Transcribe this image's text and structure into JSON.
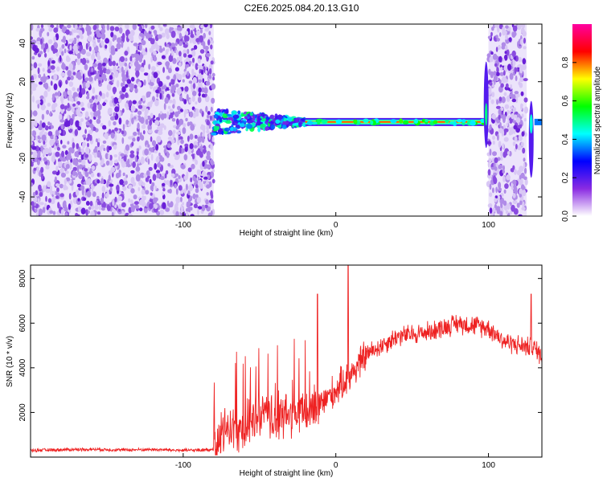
{
  "title": "C2E6.2025.084.20.13.G10",
  "chart_data": [
    {
      "type": "heatmap",
      "xlabel": "Height of straight line (km)",
      "ylabel": "Frequency (Hz)",
      "xlim": [
        -200,
        135
      ],
      "ylim": [
        -50,
        50
      ],
      "xticks": [
        -100,
        0,
        100
      ],
      "xtick_labels": [
        "-100",
        "0",
        "100"
      ],
      "yticks": [
        -40,
        -20,
        0,
        20,
        40
      ],
      "ytick_labels": [
        "-40",
        "-20",
        "0",
        "20",
        "40"
      ],
      "colorbar": {
        "label": "Normalized spectral amplitude",
        "range": [
          0,
          1
        ],
        "ticks": [
          0.0,
          0.2,
          0.4,
          0.6,
          0.8
        ],
        "tick_labels": [
          "0.0",
          "0.2",
          "0.4",
          "0.6",
          "0.8"
        ],
        "colors": [
          "#ffffff",
          "#8a2be2",
          "#0000ff",
          "#00ffff",
          "#00ff00",
          "#ffff00",
          "#ff0000",
          "#ff00a0"
        ]
      },
      "regions": [
        {
          "x_range": [
            -200,
            -80
          ],
          "content": "broadband noise",
          "freq_range": [
            -50,
            50
          ]
        },
        {
          "x_range": [
            -80,
            -20
          ],
          "content": "spreading signal",
          "freq_range": [
            -8,
            6
          ]
        },
        {
          "x_range": [
            -20,
            97
          ],
          "content": "narrow line",
          "freq": -1
        },
        {
          "x_range": [
            97,
            100
          ],
          "content": "spike",
          "freq_range": [
            -15,
            30
          ]
        },
        {
          "x_range": [
            100,
            125
          ],
          "content": "broadband noise",
          "freq_range": [
            -50,
            50
          ]
        },
        {
          "x_range": [
            125,
            135
          ],
          "content": "signal",
          "freq_range": [
            -30,
            10
          ]
        }
      ]
    },
    {
      "type": "line",
      "xlabel": "Height of straight line (km)",
      "ylabel": "SNR (10 * v/v)",
      "xlim": [
        -200,
        135
      ],
      "ylim": [
        0,
        8600
      ],
      "xticks": [
        -100,
        0,
        100
      ],
      "xtick_labels": [
        "-100",
        "0",
        "100"
      ],
      "yticks": [
        2000,
        4000,
        6000,
        8000
      ],
      "ytick_labels": [
        "2000",
        "4000",
        "6000",
        "8000"
      ],
      "series_color": "#ee2222",
      "x": [
        -200,
        -180,
        -160,
        -140,
        -120,
        -100,
        -90,
        -80,
        -70,
        -60,
        -50,
        -40,
        -30,
        -20,
        -10,
        0,
        10,
        20,
        30,
        40,
        50,
        60,
        70,
        80,
        90,
        100,
        110,
        120,
        130,
        135
      ],
      "y": [
        300,
        330,
        350,
        320,
        340,
        300,
        310,
        350,
        1400,
        1300,
        1900,
        1700,
        1900,
        2000,
        2400,
        3000,
        3700,
        4600,
        5000,
        5400,
        5500,
        5600,
        5800,
        6000,
        5900,
        5800,
        5200,
        5000,
        4900,
        4500
      ]
    }
  ]
}
